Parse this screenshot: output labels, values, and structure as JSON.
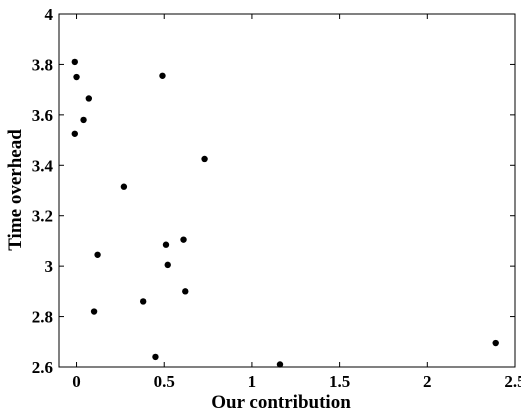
{
  "chart_data": {
    "type": "scatter",
    "xlabel": "Our contribution",
    "ylabel": "Time overhead",
    "xlim": [
      -0.1,
      2.5
    ],
    "ylim": [
      2.6,
      4.0
    ],
    "xticks": [
      "0",
      "0.5",
      "1",
      "1.5",
      "2",
      "2.5"
    ],
    "xtick_values": [
      0,
      0.5,
      1,
      1.5,
      2,
      2.5
    ],
    "yticks": [
      "2.6",
      "2.8",
      "3",
      "3.2",
      "3.4",
      "3.6",
      "3.8",
      "4"
    ],
    "ytick_values": [
      2.6,
      2.8,
      3.0,
      3.2,
      3.4,
      3.6,
      3.8,
      4.0
    ],
    "grid": false,
    "marker_color": "#000000",
    "points": [
      {
        "x": -0.01,
        "y": 3.81
      },
      {
        "x": 0.0,
        "y": 3.75
      },
      {
        "x": 0.07,
        "y": 3.665
      },
      {
        "x": 0.04,
        "y": 3.58
      },
      {
        "x": -0.01,
        "y": 3.525
      },
      {
        "x": 0.49,
        "y": 3.755
      },
      {
        "x": 0.73,
        "y": 3.425
      },
      {
        "x": 0.27,
        "y": 3.315
      },
      {
        "x": 0.61,
        "y": 3.105
      },
      {
        "x": 0.51,
        "y": 3.085
      },
      {
        "x": 0.12,
        "y": 3.045
      },
      {
        "x": 0.52,
        "y": 3.005
      },
      {
        "x": 0.62,
        "y": 2.9
      },
      {
        "x": 0.38,
        "y": 2.86
      },
      {
        "x": 0.1,
        "y": 2.82
      },
      {
        "x": 0.45,
        "y": 2.64
      },
      {
        "x": 1.16,
        "y": 2.61
      },
      {
        "x": 2.39,
        "y": 2.695
      }
    ]
  }
}
